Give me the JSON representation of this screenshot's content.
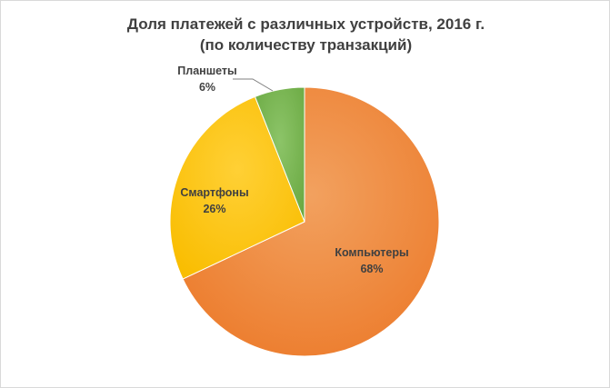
{
  "chart_data": {
    "type": "pie",
    "title": "Доля платежей с различных устройств, 2016 г.",
    "subtitle": "(по количеству транзакций)",
    "categories": [
      "Компьютеры",
      "Смартфоны",
      "Планшеты"
    ],
    "values": [
      68,
      26,
      6
    ],
    "value_labels": [
      "68%",
      "26%",
      "6%"
    ],
    "colors": [
      "#ed7d31",
      "#ffc000",
      "#70ad47"
    ],
    "start_angle_deg": 0,
    "direction": "clockwise",
    "legend": "none",
    "grid": false
  }
}
